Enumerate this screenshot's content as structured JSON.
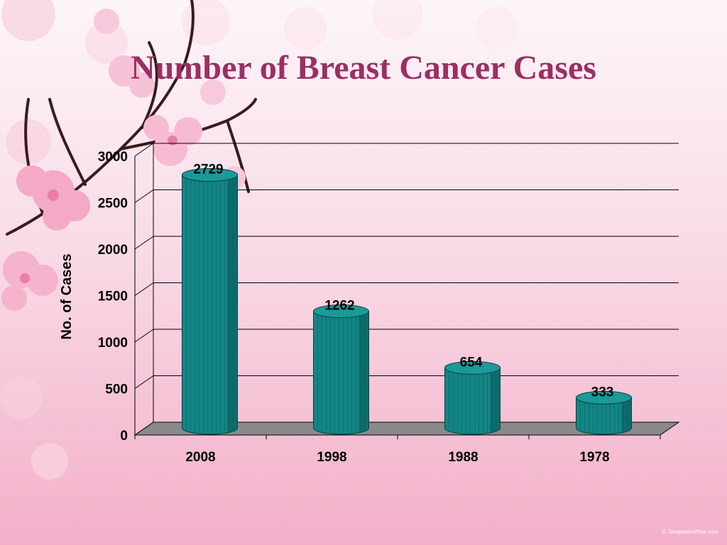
{
  "slide": {
    "title": "Number of Breast Cancer Cases",
    "watermark": "© TemplatesWise.com"
  },
  "colors": {
    "title": "#9b2f63",
    "bar": "#138585",
    "bar_dark": "#0a5757",
    "floor": "#8a8a8a",
    "gridline": "#000000"
  },
  "chart_data": {
    "type": "bar",
    "style": "3d-cylinder",
    "categories": [
      "2008",
      "1998",
      "1988",
      "1978"
    ],
    "values": [
      2729,
      1262,
      654,
      333
    ],
    "data_labels": [
      "2729",
      "1262",
      "654",
      "333"
    ],
    "y_ticks": [
      "0",
      "500",
      "1000",
      "1500",
      "2000",
      "2500",
      "3000"
    ],
    "ylim": [
      0,
      3000
    ],
    "title": "Number of Breast Cancer Cases",
    "xlabel": "",
    "ylabel": "No. of Cases",
    "grid": true,
    "legend": "none"
  }
}
